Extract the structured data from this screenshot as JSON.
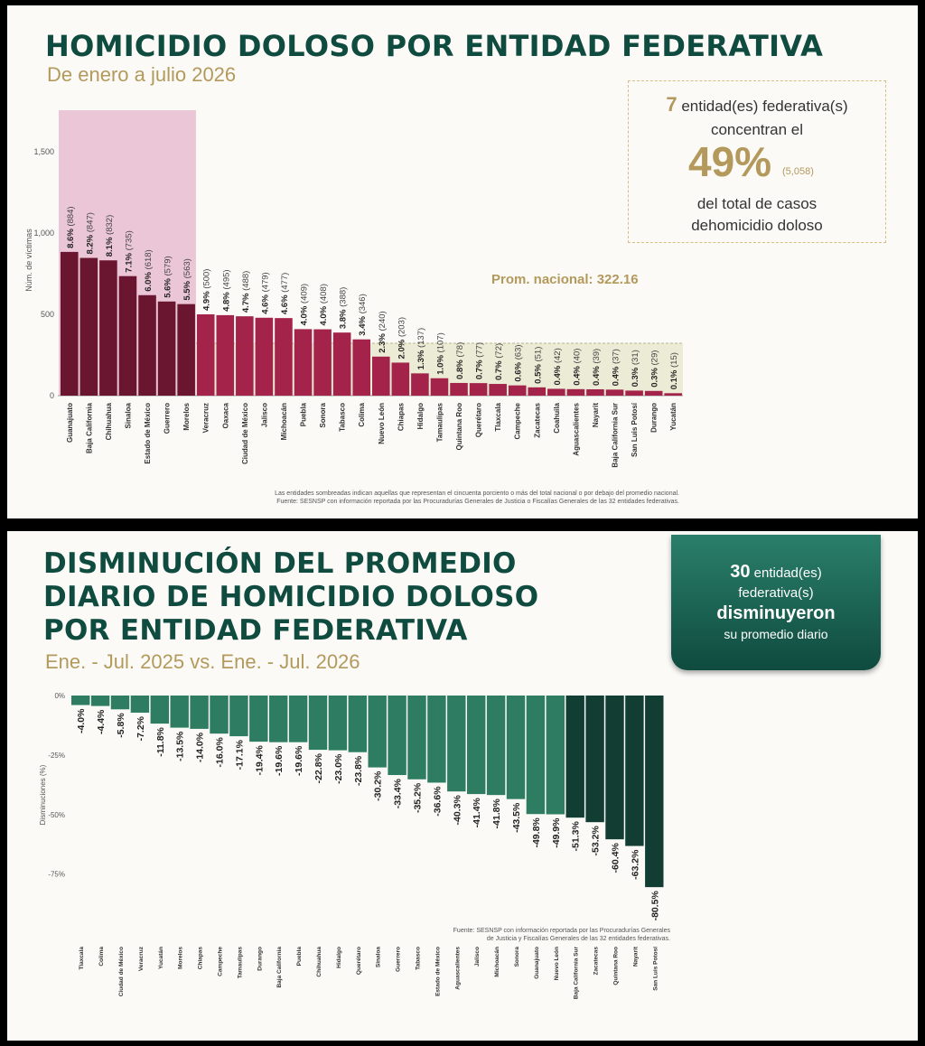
{
  "chart_data": [
    {
      "type": "bar",
      "title": "HOMICIDIO DOLOSO POR ENTIDAD FEDERATIVA",
      "subtitle": "De enero a julio 2026",
      "ylabel": "Núm. de víctimas",
      "ylim": [
        0,
        1500
      ],
      "yticks": [
        "0",
        "500",
        "1,000",
        "1,500"
      ],
      "ytick_values": [
        0,
        500,
        1000,
        1500
      ],
      "average": 322.16,
      "average_label": "Prom. nacional: 322.16",
      "highlight_count": 7,
      "colors": {
        "top": "#6b1630",
        "rest": "#a3234a",
        "highlight_bg": "#eac6d6",
        "avg_band": "#ecebd6"
      },
      "categories": [
        "Guanajuato",
        "Baja California",
        "Chihuahua",
        "Sinaloa",
        "Estado de México",
        "Guerrero",
        "Morelos",
        "Veracruz",
        "Oaxaca",
        "Ciudad de México",
        "Jalisco",
        "Michoacán",
        "Puebla",
        "Sonora",
        "Tabasco",
        "Colima",
        "Nuevo León",
        "Chiapas",
        "Hidalgo",
        "Tamaulipas",
        "Quintana Roo",
        "Querétaro",
        "Tlaxcala",
        "Campeche",
        "Zacatecas",
        "Coahuila",
        "Aguascalientes",
        "Nayarit",
        "Baja California Sur",
        "San Luis Potosí",
        "Durango",
        "Yucatán"
      ],
      "values": [
        884,
        847,
        832,
        735,
        618,
        579,
        563,
        500,
        495,
        488,
        479,
        477,
        409,
        408,
        388,
        346,
        240,
        203,
        137,
        107,
        78,
        77,
        72,
        63,
        51,
        42,
        40,
        39,
        37,
        31,
        29,
        15
      ],
      "pct_labels": [
        "8.6%",
        "8.2%",
        "8.1%",
        "7.1%",
        "6.0%",
        "5.6%",
        "5.5%",
        "4.9%",
        "4.8%",
        "4.7%",
        "4.6%",
        "4.6%",
        "4.0%",
        "4.0%",
        "3.8%",
        "3.4%",
        "2.3%",
        "2.0%",
        "1.3%",
        "1.0%",
        "0.8%",
        "0.7%",
        "0.7%",
        "0.6%",
        "0.5%",
        "0.4%",
        "0.4%",
        "0.4%",
        "0.4%",
        "0.3%",
        "0.3%",
        "0.1%"
      ],
      "count_labels": [
        "(884)",
        "(847)",
        "(832)",
        "(735)",
        "(618)",
        "(579)",
        "(563)",
        "(500)",
        "(495)",
        "(488)",
        "(479)",
        "(477)",
        "(409)",
        "(408)",
        "(388)",
        "(346)",
        "(240)",
        "(203)",
        "(137)",
        "(107)",
        "(78)",
        "(77)",
        "(72)",
        "(63)",
        "(51)",
        "(42)",
        "(40)",
        "(39)",
        "(37)",
        "(31)",
        "(29)",
        "(15)"
      ]
    },
    {
      "type": "bar",
      "title": "DISMINUCIÓN DEL PROMEDIO DIARIO DE HOMICIDIO DOLOSO POR ENTIDAD FEDERATIVA",
      "subtitle": "Ene. - Jul. 2025 vs. Ene. - Jul. 2026",
      "ylabel": "Disminuciones (%)",
      "ylim": [
        -85,
        0
      ],
      "yticks": [
        "0%",
        "-25%",
        "-50%",
        "-75%"
      ],
      "ytick_values": [
        0,
        -25,
        -50,
        -75
      ],
      "colors": {
        "light": "#2e7d62",
        "dark": "#123d33"
      },
      "dark_from_index": 25,
      "categories": [
        "Tlaxcala",
        "Colima",
        "Ciudad de México",
        "Veracruz",
        "Yucatán",
        "Morelos",
        "Chiapas",
        "Campeche",
        "Tamaulipas",
        "Durango",
        "Baja California",
        "Puebla",
        "Chihuahua",
        "Hidalgo",
        "Querétaro",
        "Sinaloa",
        "Guerrero",
        "Tabasco",
        "Estado de México",
        "Aguascalientes",
        "Jalisco",
        "Michoacán",
        "Sonora",
        "Guanajuato",
        "Nuevo León",
        "Baja California Sur",
        "Zacatecas",
        "Quintana Roo",
        "Nayarit",
        "San Luis Potosí"
      ],
      "values": [
        -4.0,
        -4.4,
        -5.8,
        -7.2,
        -11.8,
        -13.5,
        -14.0,
        -16.0,
        -17.1,
        -19.4,
        -19.6,
        -19.6,
        -22.8,
        -23.0,
        -23.8,
        -30.2,
        -33.4,
        -35.2,
        -36.6,
        -40.3,
        -41.4,
        -41.8,
        -43.5,
        -49.8,
        -49.9,
        -51.3,
        -53.2,
        -60.4,
        -63.2,
        -80.5
      ],
      "value_labels": [
        "-4.0%",
        "-4.4%",
        "-5.8%",
        "-7.2%",
        "-11.8%",
        "-13.5%",
        "-14.0%",
        "-16.0%",
        "-17.1%",
        "-19.4%",
        "-19.6%",
        "-19.6%",
        "-22.8%",
        "-23.0%",
        "-23.8%",
        "-30.2%",
        "-33.4%",
        "-35.2%",
        "-36.6%",
        "-40.3%",
        "-41.4%",
        "-41.8%",
        "-43.5%",
        "-49.8%",
        "-49.9%",
        "-51.3%",
        "-53.2%",
        "-60.4%",
        "-63.2%",
        "-80.5%"
      ]
    }
  ],
  "panel1": {
    "title": "HOMICIDIO DOLOSO POR ENTIDAD FEDERATIVA",
    "subtitle": "De enero a julio 2026",
    "summary": {
      "count": "7",
      "line1": " entidad(es) federativa(s)",
      "line2": "concentran el",
      "percent": "49%",
      "cases": "(5,058)",
      "line3": "del total de casos",
      "line4": "dehomicidio doloso"
    },
    "average_label": "Prom. nacional: 322.16",
    "footnote1": "Las entidades sombreadas indican aquellas que representan el cincuenta porciento o más del total nacional o por debajo del promedio nacional.",
    "footnote2": "Fuente: SESNSP con información reportada por las Procuradurías Generales de Justicia o Fiscalías Generales de las 32 entidades federativas."
  },
  "panel2": {
    "title_lines": [
      "DISMINUCIÓN DEL PROMEDIO",
      "DIARIO DE HOMICIDIO DOLOSO",
      "POR ENTIDAD FEDERATIVA"
    ],
    "subtitle": "Ene. - Jul. 2025 vs. Ene. - Jul. 2026",
    "summary": {
      "count": "30",
      "line1": " entidad(es)",
      "line2": "federativa(s)",
      "line3": "disminuyeron",
      "line4": "su promedio diario"
    },
    "footnote1": "Fuente: SESNSP con información reportada por las Procuradurías Generales",
    "footnote2": "de Justicia y Fiscalías Generales de las 32 entidades federativas."
  }
}
